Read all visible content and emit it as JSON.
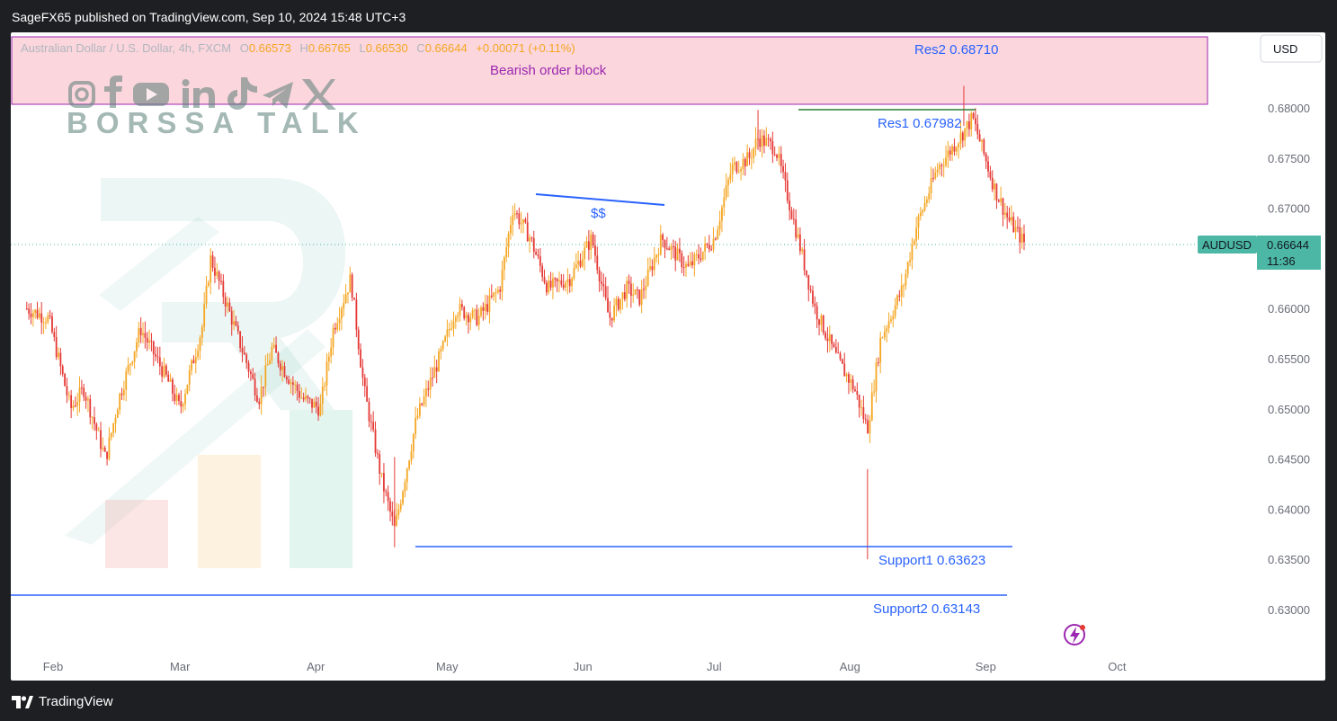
{
  "header": {
    "published_line": "SageFX65 published on TradingView.com, Sep 10, 2024 15:48 UTC+3"
  },
  "legend": {
    "symbol_desc": "Australian Dollar / U.S. Dollar, 4h, FXCM",
    "o_label": "O",
    "o_value": "0.66573",
    "h_label": "H",
    "h_value": "0.66765",
    "l_label": "L",
    "l_value": "0.66530",
    "c_label": "C",
    "c_value": "0.66644",
    "change": "+0.00071 (+0.11%)"
  },
  "watermark": {
    "brand_text": "BORSSA TALK"
  },
  "price_scale": {
    "currency": "USD",
    "symbol_tag": "AUDUSD",
    "last_price": "0.66644",
    "countdown": "11:36"
  },
  "annotations": {
    "order_block": "Bearish order block",
    "res2": "Res2 0.68710",
    "res1": "Res1 0.67982",
    "liquidity": "$$",
    "support1": "Support1  0.63623",
    "support2": "Support2  0.63143"
  },
  "footer": {
    "brand": "TradingView"
  },
  "colors": {
    "up": "#f5a623",
    "down": "#e53935",
    "level_blue": "#2962ff",
    "level_green": "#2e7d32",
    "order_block_fill": "#fbd6dc",
    "order_block_border": "#9c27b0",
    "price_tag": "#4cb7a5"
  },
  "chart_data": {
    "type": "candlestick",
    "symbol": "AUDUSD",
    "timeframe": "4h",
    "y_ticks": [
      "0.68000",
      "0.67500",
      "0.67000",
      "0.66500",
      "0.66000",
      "0.65500",
      "0.65000",
      "0.64500",
      "0.64000",
      "0.63500",
      "0.63000"
    ],
    "ylim": [
      0.629,
      0.6895
    ],
    "x_ticks": [
      "Feb",
      "Mar",
      "Apr",
      "May",
      "Jun",
      "Jul",
      "Aug",
      "Sep",
      "Oct"
    ],
    "path_points": [
      [
        "2024-01-26",
        0.66
      ],
      [
        "2024-01-31",
        0.659
      ],
      [
        "2024-02-05",
        0.65
      ],
      [
        "2024-02-08",
        0.652
      ],
      [
        "2024-02-13",
        0.645
      ],
      [
        "2024-02-16",
        0.651
      ],
      [
        "2024-02-21",
        0.658
      ],
      [
        "2024-02-27",
        0.653
      ],
      [
        "2024-03-01",
        0.65
      ],
      [
        "2024-03-06",
        0.658
      ],
      [
        "2024-03-08",
        0.665
      ],
      [
        "2024-03-12",
        0.66
      ],
      [
        "2024-03-19",
        0.651
      ],
      [
        "2024-03-22",
        0.656
      ],
      [
        "2024-03-26",
        0.653
      ],
      [
        "2024-03-29",
        0.651
      ],
      [
        "2024-04-02",
        0.65
      ],
      [
        "2024-04-05",
        0.658
      ],
      [
        "2024-04-09",
        0.663
      ],
      [
        "2024-04-12",
        0.652
      ],
      [
        "2024-04-16",
        0.643
      ],
      [
        "2024-04-19",
        0.638
      ],
      [
        "2024-04-24",
        0.649
      ],
      [
        "2024-04-30",
        0.656
      ],
      [
        "2024-05-03",
        0.66
      ],
      [
        "2024-05-08",
        0.659
      ],
      [
        "2024-05-13",
        0.662
      ],
      [
        "2024-05-16",
        0.67
      ],
      [
        "2024-05-20",
        0.667
      ],
      [
        "2024-05-24",
        0.662
      ],
      [
        "2024-05-29",
        0.663
      ],
      [
        "2024-06-03",
        0.667
      ],
      [
        "2024-06-07",
        0.659
      ],
      [
        "2024-06-11",
        0.662
      ],
      [
        "2024-06-14",
        0.661
      ],
      [
        "2024-06-19",
        0.667
      ],
      [
        "2024-06-25",
        0.664
      ],
      [
        "2024-07-01",
        0.667
      ],
      [
        "2024-07-05",
        0.674
      ],
      [
        "2024-07-09",
        0.675
      ],
      [
        "2024-07-11",
        0.677
      ],
      [
        "2024-07-15",
        0.676
      ],
      [
        "2024-07-19",
        0.669
      ],
      [
        "2024-07-24",
        0.66
      ],
      [
        "2024-07-29",
        0.655
      ],
      [
        "2024-08-02",
        0.652
      ],
      [
        "2024-08-05",
        0.648
      ],
      [
        "2024-08-08",
        0.657
      ],
      [
        "2024-08-13",
        0.662
      ],
      [
        "2024-08-16",
        0.668
      ],
      [
        "2024-08-21",
        0.674
      ],
      [
        "2024-08-26",
        0.677
      ],
      [
        "2024-08-29",
        0.679
      ],
      [
        "2024-09-03",
        0.672
      ],
      [
        "2024-09-06",
        0.669
      ],
      [
        "2024-09-10",
        0.6664
      ]
    ],
    "levels": [
      {
        "label": "Res2 0.68710",
        "value": 0.6871
      },
      {
        "label": "Res1 0.67982",
        "value": 0.67982
      },
      {
        "label": "Support1  0.63623",
        "value": 0.63623
      },
      {
        "label": "Support2  0.63143",
        "value": 0.63143
      }
    ],
    "last_close": 0.66644
  }
}
